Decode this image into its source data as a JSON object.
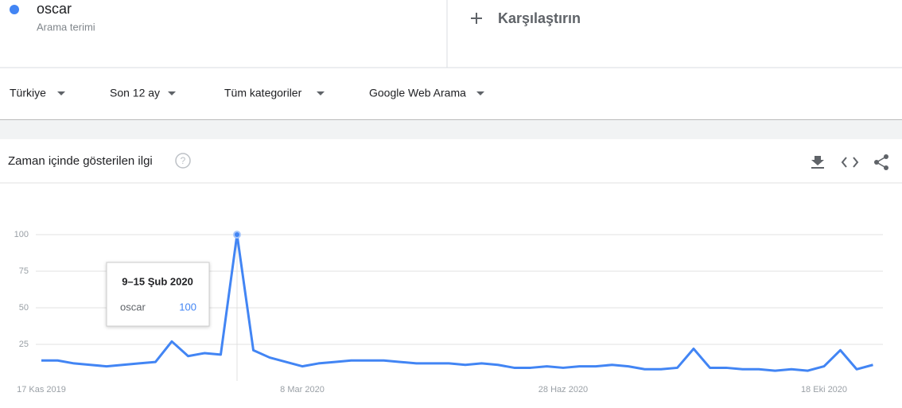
{
  "search_term": {
    "name": "oscar",
    "label": "Arama terimi"
  },
  "compare": "Karşılaştırın",
  "filters": [
    "Türkiye",
    "Son 12 ay",
    "Tüm kategoriler",
    "Google Web Arama"
  ],
  "section_title": "Zaman içinde gösterilen ilgi",
  "chart_data": {
    "type": "line",
    "categories": [
      "17 Kas 2019",
      null,
      null,
      null,
      null,
      null,
      null,
      null,
      null,
      null,
      null,
      null,
      null,
      null,
      null,
      null,
      "8 Mar 2020",
      null,
      null,
      null,
      null,
      null,
      null,
      null,
      null,
      null,
      null,
      null,
      null,
      null,
      null,
      null,
      "28 Haz 2020",
      null,
      null,
      null,
      null,
      null,
      null,
      null,
      null,
      null,
      null,
      null,
      null,
      null,
      null,
      null,
      "18 Eki 2020",
      null,
      null,
      null
    ],
    "series": [
      {
        "name": "oscar",
        "color": "#4285f4",
        "values": [
          14,
          14,
          12,
          11,
          10,
          11,
          12,
          13,
          27,
          17,
          19,
          18,
          100,
          21,
          16,
          13,
          10,
          12,
          13,
          14,
          14,
          14,
          13,
          12,
          12,
          12,
          11,
          12,
          11,
          9,
          9,
          10,
          9,
          10,
          10,
          11,
          10,
          8,
          8,
          9,
          22,
          9,
          9,
          8,
          8,
          7,
          8,
          7,
          10,
          21,
          8,
          11
        ]
      }
    ],
    "ylim": [
      0,
      100
    ],
    "yticks": [
      25,
      50,
      75,
      100
    ],
    "grid": true,
    "tooltip": {
      "title": "9–15 Şub 2020",
      "index": 12
    }
  }
}
